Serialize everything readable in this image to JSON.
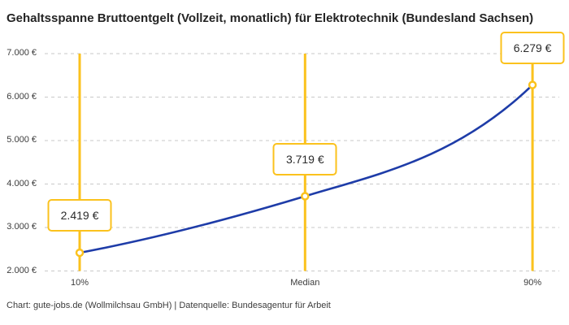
{
  "title": "Gehaltsspanne Bruttoentgelt (Vollzeit, monatlich) für Elektrotechnik (Bundesland Sachsen)",
  "footer": "Chart: gute-jobs.de (Wollmilchsau GmbH) | Datenquelle: Bundesagentur für Arbeit",
  "chart_data": {
    "type": "line",
    "title": "Gehaltsspanne Bruttoentgelt (Vollzeit, monatlich) für Elektrotechnik (Bundesland Sachsen)",
    "categories": [
      "10%",
      "Median",
      "90%"
    ],
    "values": [
      2419,
      3719,
      6279
    ],
    "value_labels": [
      "2.419 €",
      "3.719 €",
      "6.279 €"
    ],
    "ylim": [
      2000,
      7000
    ],
    "y_ticks": {
      "values": [
        7000,
        6000,
        5000,
        4000,
        3000,
        2000
      ],
      "labels": [
        "7.000 €",
        "6.000 €",
        "5.000 €",
        "4.000 €",
        "3.000 €",
        "2.000 €"
      ]
    },
    "grid": "horizontal-dashed",
    "legend": "none",
    "annotations": "each percentile marked with vertical highlight line, circle marker and boxed value label",
    "colors": {
      "line": "#1e3ca8",
      "highlight": "#fbc21d",
      "grid": "#c9c9c9",
      "text": "#3c3c3c",
      "title_text": "#242424",
      "background": "#ffffff"
    }
  }
}
